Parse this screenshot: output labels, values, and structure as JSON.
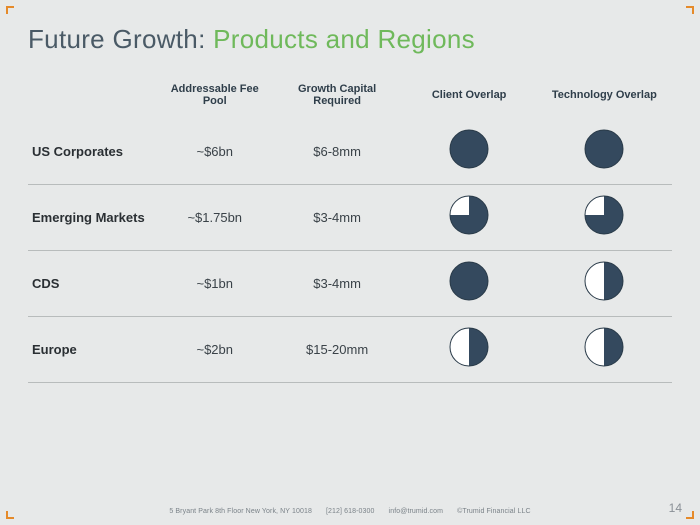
{
  "slide": {
    "background_color": "#e7e9e9",
    "corner_color": "#e58a2a",
    "title_prefix": "Future Growth: ",
    "title_suffix": "Products and Regions",
    "title_prefix_color": "#4a5a66",
    "title_suffix_color": "#6fb95b",
    "title_fontsize": 26
  },
  "table": {
    "header_fontsize": 11,
    "header_color": "#2f3e4a",
    "rowlabel_fontsize": 13,
    "rowlabel_color": "#2a2f33",
    "cell_fontsize": 13,
    "cell_color": "#3a4248",
    "divider_color": "#b8bcbc",
    "columns": [
      {
        "key": "rowlabel",
        "label": ""
      },
      {
        "key": "fee_pool",
        "label": "Addressable Fee Pool"
      },
      {
        "key": "capital",
        "label": "Growth Capital Required"
      },
      {
        "key": "client_ov",
        "label": "Client Overlap"
      },
      {
        "key": "tech_ov",
        "label": "Technology Overlap"
      }
    ],
    "rows": [
      {
        "label": "US Corporates",
        "fee_pool": "~$6bn",
        "capital": "$6-8mm",
        "client_ov_pct": 100,
        "tech_ov_pct": 100
      },
      {
        "label": "Emerging Markets",
        "fee_pool": "~$1.75bn",
        "capital": "$3-4mm",
        "client_ov_pct": 75,
        "tech_ov_pct": 75
      },
      {
        "label": "CDS",
        "fee_pool": "~$1bn",
        "capital": "$3-4mm",
        "client_ov_pct": 100,
        "tech_ov_pct": 50
      },
      {
        "label": "Europe",
        "fee_pool": "~$2bn",
        "capital": "$15-20mm",
        "client_ov_pct": 50,
        "tech_ov_pct": 50
      }
    ],
    "pie": {
      "diameter": 40,
      "fill_color": "#34495e",
      "empty_color": "#ffffff",
      "stroke_color": "#2a3b49",
      "stroke_width": 1
    }
  },
  "footer": {
    "color": "#7a8288",
    "address": "5 Bryant Park 8th Floor New York, NY 10018",
    "phone": "[212] 618-0300",
    "email": "info@trumid.com",
    "copyright": "©Trumid Financial LLC"
  },
  "page_number": "14",
  "page_number_color": "#8a9096"
}
